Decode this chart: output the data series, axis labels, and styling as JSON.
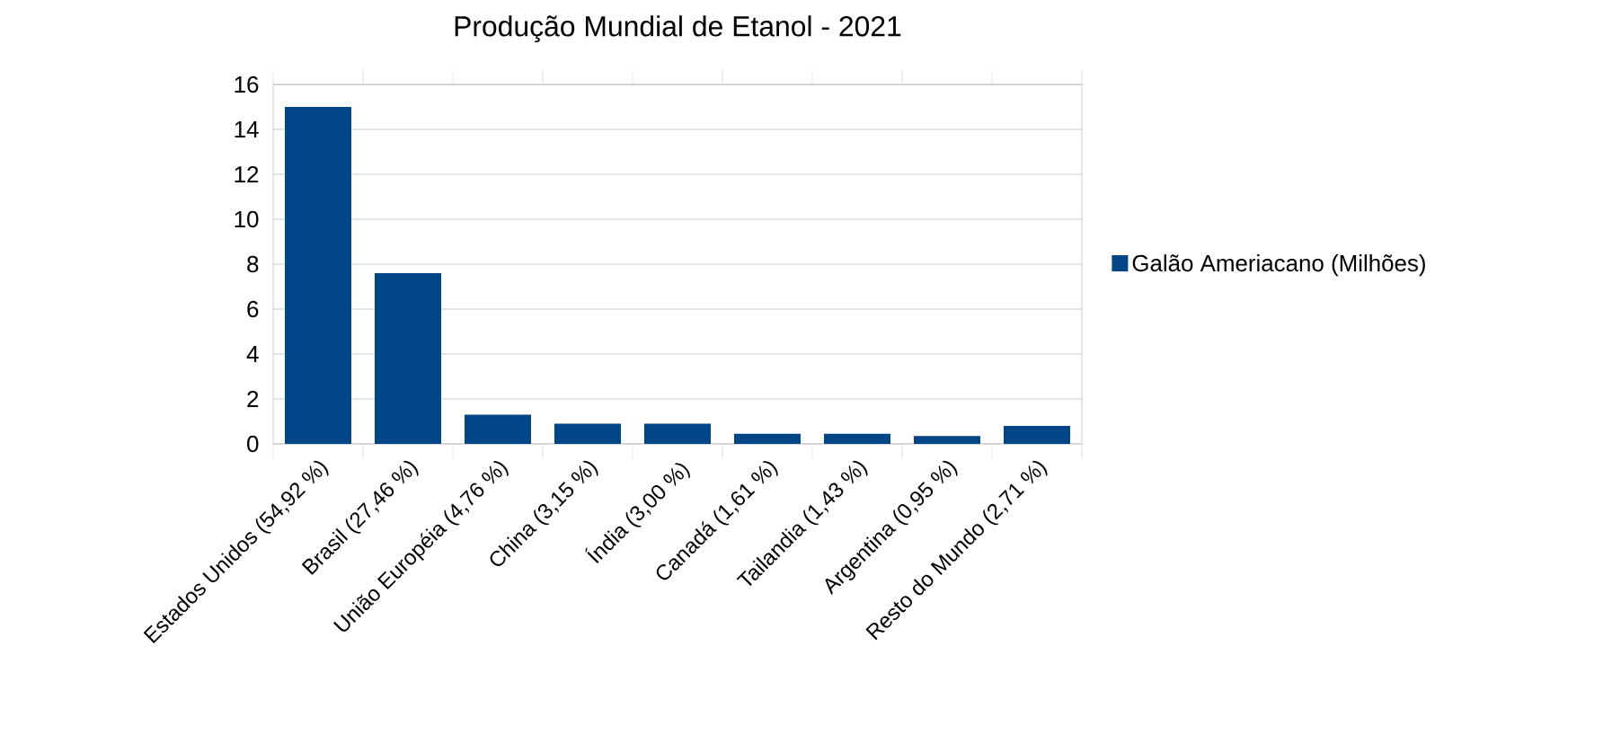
{
  "chart_data": {
    "type": "bar",
    "title": "Produção Mundial de Etanol - 2021",
    "categories": [
      "Estados Unidos (54,92 %)",
      "Brasil (27,46 %)",
      "União Européia (4,76 %)",
      "China (3,15 %)",
      "Índia (3,00 %)",
      "Canadá (1,61 %)",
      "Tailandia (1,43 %)",
      "Argentina (0,95 %)",
      "Resto do Mundo (2,71 %)"
    ],
    "series": [
      {
        "name": "Galão Ameriacano (Milhões)",
        "color": "#004586",
        "values": [
          15.0,
          7.6,
          1.3,
          0.9,
          0.9,
          0.45,
          0.45,
          0.35,
          0.8
        ]
      }
    ],
    "ylim": [
      0,
      16
    ],
    "yticks": [
      0,
      2,
      4,
      6,
      8,
      10,
      12,
      14,
      16
    ],
    "grid": "y",
    "legend": "right"
  }
}
